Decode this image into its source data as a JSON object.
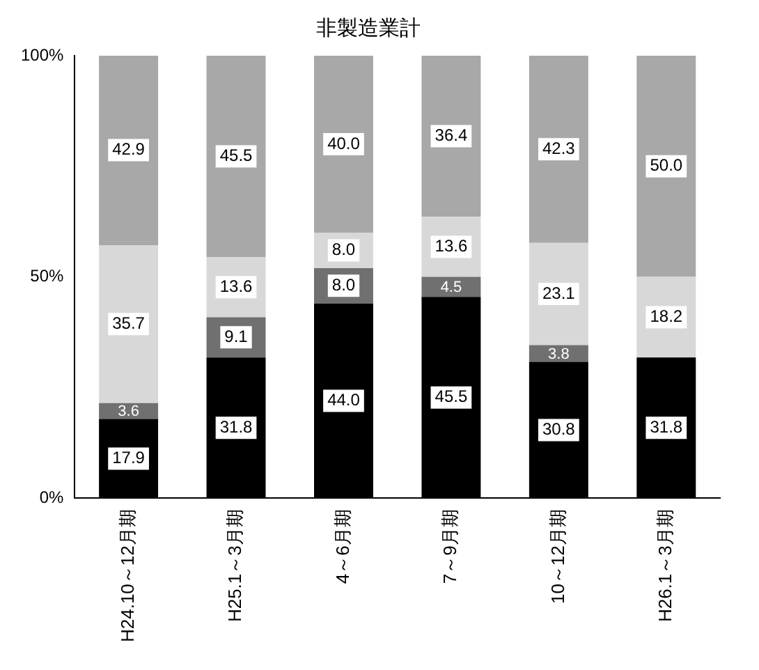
{
  "chart_data": {
    "type": "bar",
    "title": "非製造業計",
    "stacked": true,
    "categories": [
      "H24.10～12月期",
      "H25.1～3月期",
      "4～6月期",
      "7～9月期",
      "10～12月期",
      "H26.1～3月期"
    ],
    "series": [
      {
        "color": "#000000",
        "values": [
          17.9,
          31.8,
          44.0,
          45.5,
          30.8,
          31.8
        ],
        "value_labels": [
          "17.9",
          "31.8",
          "44.0",
          "45.5",
          "30.8",
          "31.8"
        ]
      },
      {
        "color": "#707070",
        "values": [
          3.6,
          9.1,
          8.0,
          4.5,
          3.8,
          0
        ],
        "value_labels": [
          "3.6",
          "9.1",
          "8.0",
          "4.5",
          "3.8",
          null
        ]
      },
      {
        "color": "#d8d8d8",
        "values": [
          35.7,
          13.6,
          8.0,
          13.6,
          23.1,
          18.2
        ],
        "value_labels": [
          "35.7",
          "13.6",
          "8.0",
          "13.6",
          "23.1",
          "18.2"
        ]
      },
      {
        "color": "#a8a8a8",
        "values": [
          42.9,
          45.5,
          40.0,
          36.4,
          42.3,
          50.0
        ],
        "value_labels": [
          "42.9",
          "45.5",
          "40.0",
          "36.4",
          "42.3",
          "50.0"
        ]
      }
    ],
    "ylim": [
      0,
      100
    ],
    "yticks": [
      {
        "value": 0,
        "label": "0%"
      },
      {
        "value": 50,
        "label": "50%"
      },
      {
        "value": 100,
        "label": "100%"
      }
    ],
    "grid": false,
    "legend": false
  }
}
